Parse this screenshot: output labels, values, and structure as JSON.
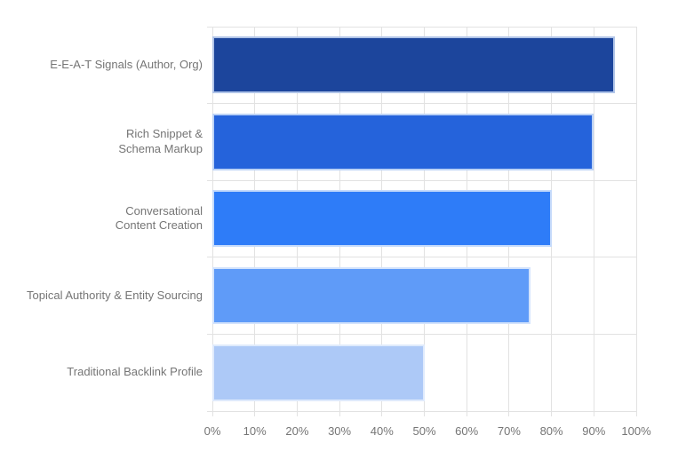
{
  "chart_data": {
    "type": "bar",
    "orientation": "horizontal",
    "title": "",
    "xlabel": "",
    "ylabel": "",
    "categories": [
      "E-E-A-T Signals (Author, Org)",
      "Rich Snippet &\nSchema Markup",
      "Conversational\nContent Creation",
      "Topical Authority & Entity Sourcing",
      "Traditional Backlink Profile"
    ],
    "values": [
      95,
      90,
      80,
      75,
      50
    ],
    "unit": "%",
    "xlim": [
      0,
      100
    ],
    "x_tick_labels": [
      "0%",
      "10%",
      "20%",
      "30%",
      "40%",
      "50%",
      "60%",
      "70%",
      "80%",
      "90%",
      "100%"
    ],
    "x_tick_step": 10,
    "grid": true,
    "legend_position": "none",
    "bar_colors": [
      "#1c459c",
      "#2563db",
      "#2e7cf8",
      "#5f9bf8",
      "#adc9f7"
    ],
    "bar_border_colors": [
      "#b0c4e8",
      "#bcd2f6",
      "#c4dafb",
      "#d3e3fc",
      "#dfeafc"
    ],
    "gridline_color": "#e2e2e2",
    "text_color": "#757575",
    "background_color": "#ffffff"
  }
}
